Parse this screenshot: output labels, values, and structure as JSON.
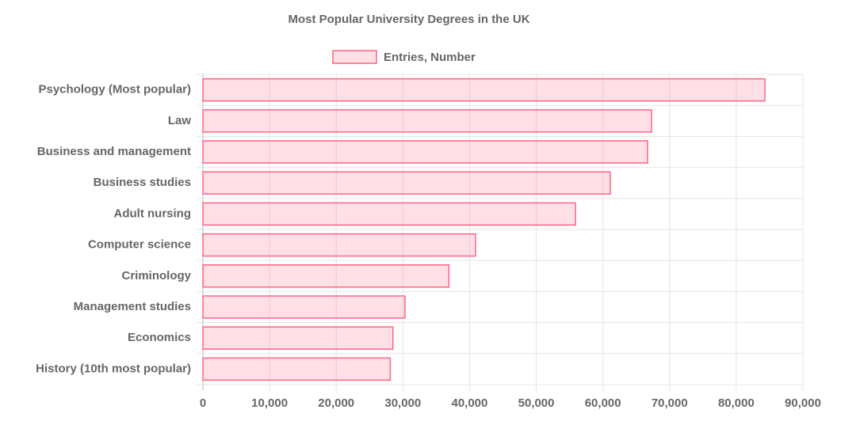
{
  "chart_data": {
    "type": "bar",
    "orientation": "horizontal",
    "title": "Most Popular University Degrees in the UK",
    "categories": [
      "Psychology (Most popular)",
      "Law",
      "Business and management",
      "Business studies",
      "Adult nursing",
      "Computer science",
      "Criminology",
      "Management studies",
      "Economics",
      "History (10th most popular)"
    ],
    "series": [
      {
        "name": "Entries, Number",
        "color": "#ff6384",
        "values": [
          84300,
          67300,
          66700,
          61100,
          55900,
          40900,
          36900,
          30300,
          28500,
          28100
        ]
      }
    ],
    "xlim": [
      0,
      90000
    ],
    "xticks": [
      0,
      {
        "value": 10000,
        "label": "10,000"
      },
      {
        "value": 20000,
        "label": "20,000"
      },
      {
        "value": 30000,
        "label": "30,000"
      },
      {
        "value": 40000,
        "label": "40,000"
      },
      {
        "value": 50000,
        "label": "50,000"
      },
      {
        "value": 60000,
        "label": "60,000"
      },
      {
        "value": 70000,
        "label": "70,000"
      },
      {
        "value": 80000,
        "label": "80,000"
      },
      {
        "value": 90000,
        "label": "90,000"
      }
    ],
    "grid": true,
    "legend": "top"
  }
}
